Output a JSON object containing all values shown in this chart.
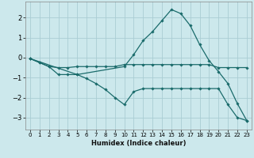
{
  "xlabel": "Humidex (Indice chaleur)",
  "bg_color": "#cce8ec",
  "grid_color": "#aacdd4",
  "line_color": "#1a6b6b",
  "xlim": [
    -0.5,
    23.5
  ],
  "ylim": [
    -3.6,
    2.8
  ],
  "yticks": [
    -3,
    -2,
    -1,
    0,
    1,
    2
  ],
  "xticks": [
    0,
    1,
    2,
    3,
    4,
    5,
    6,
    7,
    8,
    9,
    10,
    11,
    12,
    13,
    14,
    15,
    16,
    17,
    18,
    19,
    20,
    21,
    22,
    23
  ],
  "lines": [
    {
      "x": [
        0,
        1,
        2,
        3,
        4,
        5,
        10,
        11,
        12,
        13,
        14,
        15,
        16,
        17,
        18,
        19,
        20,
        21,
        22,
        23
      ],
      "y": [
        -0.05,
        -0.25,
        -0.45,
        -0.85,
        -0.85,
        -0.85,
        -0.45,
        0.15,
        0.85,
        1.3,
        1.85,
        2.4,
        2.2,
        1.6,
        0.65,
        -0.15,
        -0.7,
        -1.3,
        -2.3,
        -3.15
      ]
    },
    {
      "x": [
        0,
        1,
        2,
        3,
        4,
        5,
        6,
        7,
        8,
        9,
        10,
        11,
        12,
        13,
        14,
        15,
        16,
        17,
        18,
        19,
        20,
        21,
        22,
        23
      ],
      "y": [
        -0.05,
        -0.25,
        -0.45,
        -0.5,
        -0.5,
        -0.45,
        -0.45,
        -0.45,
        -0.45,
        -0.45,
        -0.35,
        -0.35,
        -0.35,
        -0.35,
        -0.35,
        -0.35,
        -0.35,
        -0.35,
        -0.35,
        -0.35,
        -0.5,
        -0.5,
        -0.5,
        -0.5
      ]
    },
    {
      "x": [
        0,
        5,
        6,
        7,
        8,
        9,
        10,
        11,
        12,
        13,
        14,
        15,
        16,
        17,
        18,
        19,
        20,
        21,
        22,
        23
      ],
      "y": [
        -0.05,
        -0.85,
        -1.05,
        -1.3,
        -1.6,
        -2.0,
        -2.35,
        -1.7,
        -1.55,
        -1.55,
        -1.55,
        -1.55,
        -1.55,
        -1.55,
        -1.55,
        -1.55,
        -1.55,
        -2.35,
        -3.0,
        -3.15
      ]
    }
  ]
}
